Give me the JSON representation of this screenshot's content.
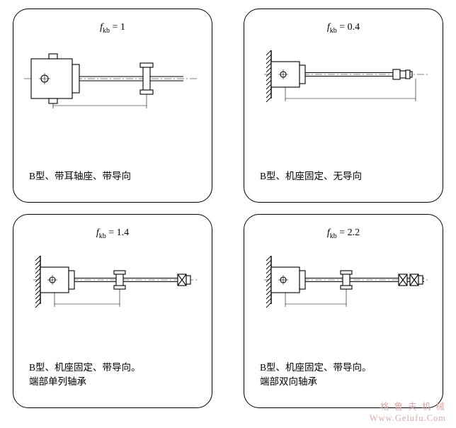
{
  "watermark": {
    "cn": "格 鲁 夫 机 械",
    "en": "Www.Gelufu.Com"
  },
  "cards": [
    {
      "formula_var": "f",
      "formula_sub": "kb",
      "formula_val": "= 1",
      "caption": "B型、带耳轴座、带导向",
      "svg": "type1"
    },
    {
      "formula_var": "f",
      "formula_sub": "kb",
      "formula_val": "= 0.4",
      "caption": "B型、机座固定、无导向",
      "svg": "type2"
    },
    {
      "formula_var": "f",
      "formula_sub": "kb",
      "formula_val": "= 1.4",
      "caption": "B型、机座固定、带导向。\n端部单列轴承",
      "svg": "type3"
    },
    {
      "formula_var": "f",
      "formula_sub": "kb",
      "formula_val": "= 2.2",
      "caption": "B型、机座固定、带导向。\n端部双向轴承",
      "svg": "type4"
    }
  ],
  "style": {
    "stroke": "#000000",
    "stroke_width": 1.1,
    "thin_width": 0.6,
    "hatch_stroke": "#000000"
  }
}
